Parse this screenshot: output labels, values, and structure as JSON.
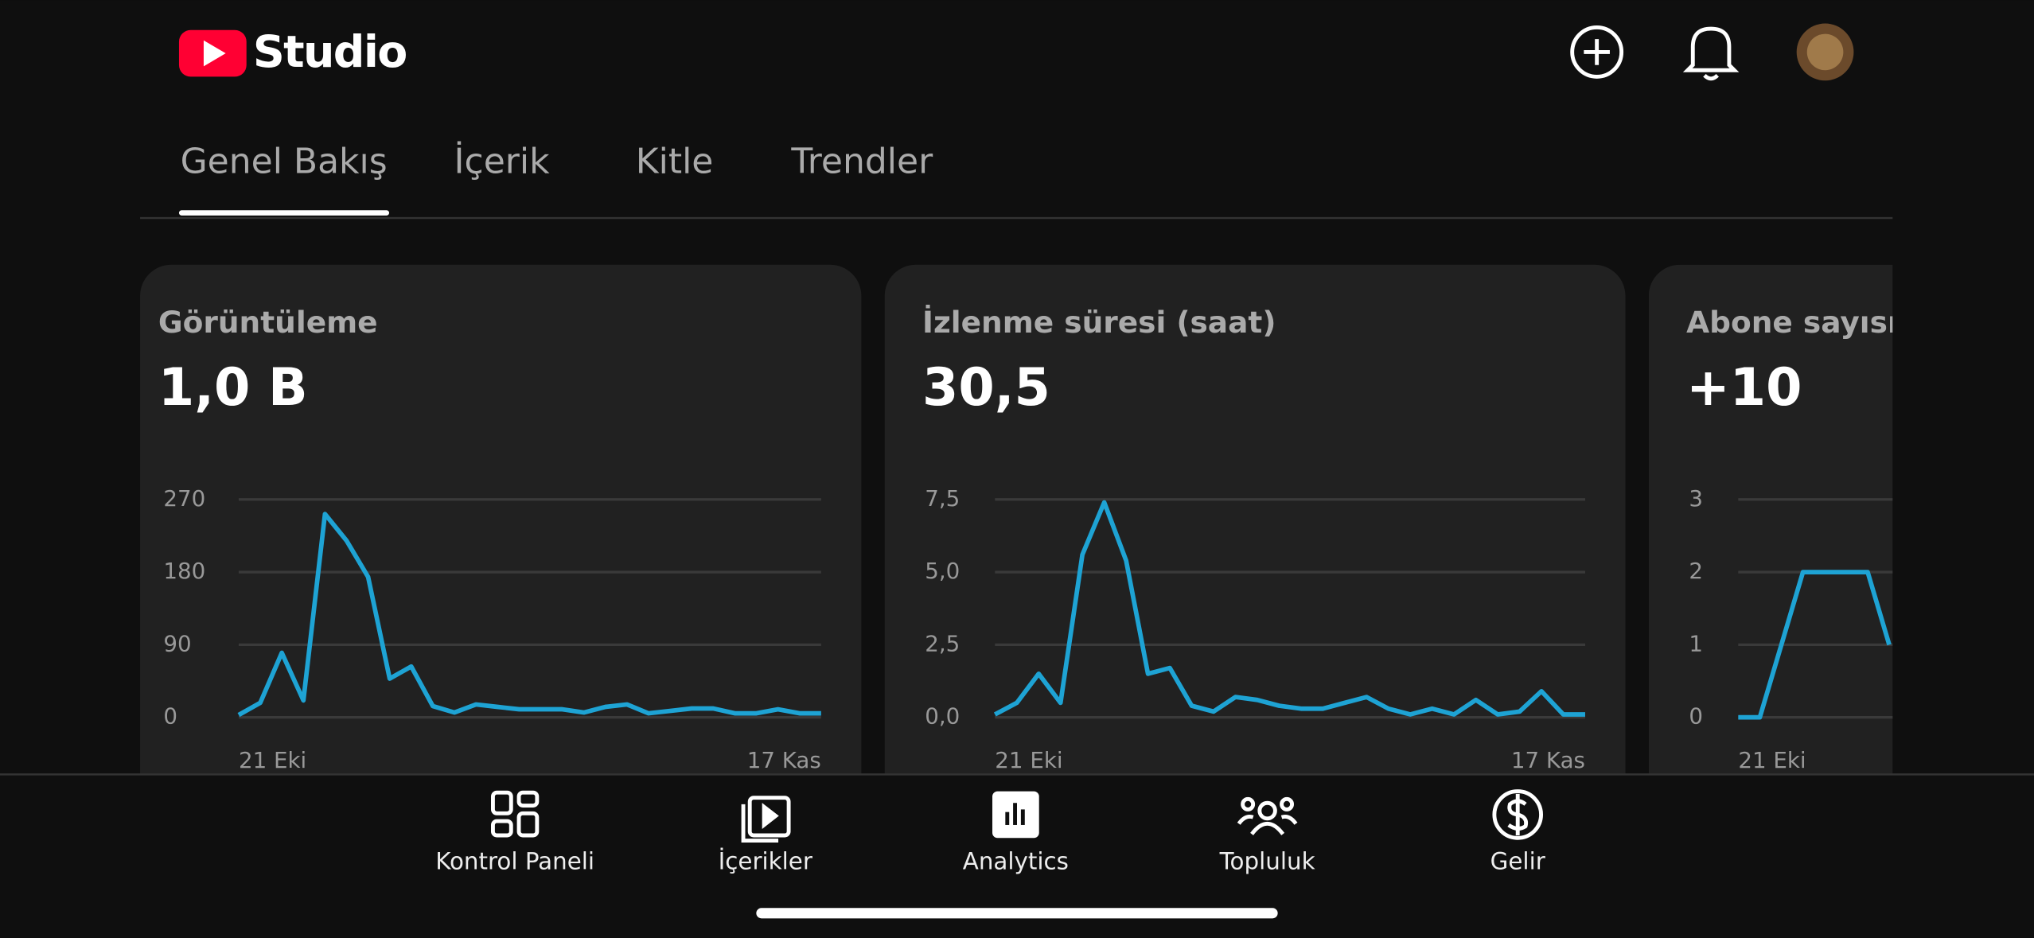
{
  "header": {
    "logo_text": "Studio"
  },
  "tabs": [
    "Genel Bakış",
    "İçerik",
    "Kitle",
    "Trendler"
  ],
  "cards": [
    {
      "title": "Görüntüleme",
      "value": "1,0 B",
      "chart": {
        "type": "line",
        "color": "#1ea3d4",
        "ylim": [
          0,
          270
        ],
        "yticks": [
          0,
          90,
          180,
          270
        ],
        "x_labels": [
          "21 Eki",
          "17 Kas"
        ],
        "values": [
          3,
          18,
          80,
          21,
          252,
          219,
          174,
          48,
          63,
          14,
          6,
          16,
          13,
          10,
          10,
          10,
          6,
          13,
          16,
          5,
          8,
          11,
          11,
          5,
          5,
          10,
          5,
          5
        ]
      }
    },
    {
      "title": "İzlenme süresi (saat)",
      "value": "30,5",
      "chart": {
        "type": "line",
        "color": "#1ea3d4",
        "ylim": [
          0,
          7.5
        ],
        "yticks": [
          {
            "value": 0,
            "label": "0,0"
          },
          {
            "value": 2.5,
            "label": "2,5"
          },
          {
            "value": 5,
            "label": "5,0"
          },
          {
            "value": 7.5,
            "label": "7,5"
          }
        ],
        "x_labels": [
          "21 Eki",
          "17 Kas"
        ],
        "values": [
          0.1,
          0.5,
          1.5,
          0.5,
          5.6,
          7.4,
          5.4,
          1.5,
          1.7,
          0.4,
          0.2,
          0.7,
          0.6,
          0.4,
          0.3,
          0.3,
          0.5,
          0.7,
          0.3,
          0.1,
          0.3,
          0.1,
          0.6,
          0.1,
          0.2,
          0.9,
          0.1,
          0.1
        ]
      }
    },
    {
      "title": "Abone sayısı",
      "value": "+10",
      "chart": {
        "type": "line",
        "color": "#1ea3d4",
        "ylim": [
          0,
          3
        ],
        "yticks": [
          0,
          1,
          2,
          3
        ],
        "x_labels": [
          "21 Eki"
        ],
        "values": [
          0,
          0,
          1,
          2,
          2,
          2,
          2,
          1
        ]
      }
    }
  ],
  "nav": [
    "Kontrol Paneli",
    "İçerikler",
    "Analytics",
    "Topluluk",
    "Gelir"
  ]
}
